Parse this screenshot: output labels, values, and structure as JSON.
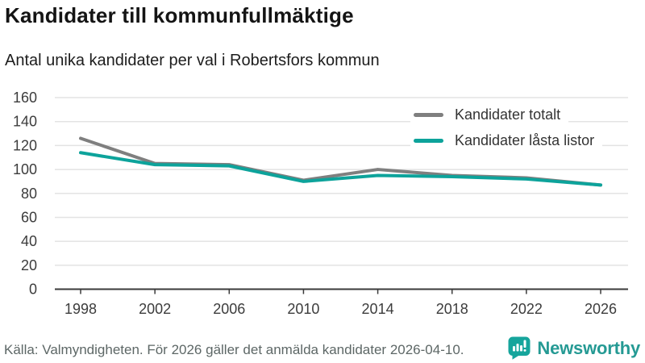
{
  "header": {
    "title": "Kandidater till kommunfullmäktige",
    "subtitle": "Antal unika kandidater per val i Robertsfors kommun"
  },
  "chart_data": {
    "type": "line",
    "title": "Kandidater till kommunfullmäktige",
    "subtitle": "Antal unika kandidater per val i Robertsfors kommun",
    "x": [
      1998,
      2002,
      2006,
      2010,
      2014,
      2018,
      2022,
      2026
    ],
    "series": [
      {
        "name": "Kandidater totalt",
        "color": "#7f7f7f",
        "values": [
          126,
          105,
          104,
          91,
          100,
          95,
          93,
          87
        ]
      },
      {
        "name": "Kandidater låsta listor",
        "color": "#0da39b",
        "values": [
          114,
          104,
          103,
          90,
          95,
          94,
          92,
          87
        ]
      }
    ],
    "xlabel": "",
    "ylabel": "",
    "ylim": [
      0,
      160
    ],
    "ytick_step": 20,
    "grid": true,
    "legend_position": "top-right"
  },
  "footer": {
    "source": "Källa: Valmyndigheten. För 2026 gäller det anmälda kandidater 2026-04-10."
  },
  "branding": {
    "name": "Newsworthy",
    "icon": "newsworthy-speech-bubble-bars-icon",
    "icon_color": "#16a59c",
    "text_color": "#259a94"
  },
  "colors": {
    "gridline": "#e3e3e3",
    "axis": "#3a3a3a",
    "tick_label": "#3c3c3c",
    "title": "#141414",
    "subtitle": "#1d1d1d",
    "source_text": "#5d6766"
  }
}
